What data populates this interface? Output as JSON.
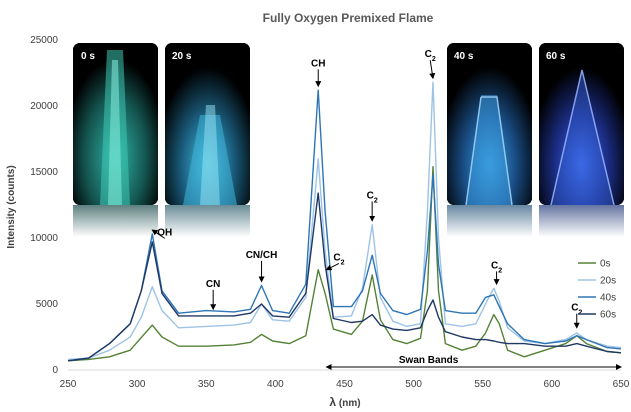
{
  "chart_data": {
    "type": "line",
    "title": "Fully Oxygen Premixed Flame",
    "xlabel_prefix": "λ",
    "xlabel_suffix": " (nm)",
    "ylabel": "Intensity (counts)",
    "xlim": [
      250,
      650
    ],
    "ylim": [
      0,
      25000
    ],
    "x_ticks": [
      250,
      300,
      350,
      400,
      450,
      500,
      550,
      600,
      650
    ],
    "y_ticks": [
      0,
      5000,
      10000,
      15000,
      20000,
      25000
    ],
    "grid": false,
    "legend_position": "right",
    "series": [
      {
        "name": "0s",
        "color": "#548235",
        "points": [
          [
            250,
            700
          ],
          [
            265,
            800
          ],
          [
            280,
            1000
          ],
          [
            295,
            1500
          ],
          [
            305,
            2700
          ],
          [
            311,
            3400
          ],
          [
            318,
            2500
          ],
          [
            330,
            1800
          ],
          [
            350,
            1800
          ],
          [
            370,
            1900
          ],
          [
            382,
            2100
          ],
          [
            390,
            2700
          ],
          [
            398,
            2200
          ],
          [
            410,
            2000
          ],
          [
            422,
            2600
          ],
          [
            431,
            7600
          ],
          [
            436,
            5800
          ],
          [
            442,
            3100
          ],
          [
            455,
            2700
          ],
          [
            463,
            3700
          ],
          [
            470,
            7200
          ],
          [
            476,
            3800
          ],
          [
            485,
            2300
          ],
          [
            495,
            2000
          ],
          [
            505,
            2400
          ],
          [
            510,
            6000
          ],
          [
            514,
            15400
          ],
          [
            518,
            6000
          ],
          [
            523,
            2000
          ],
          [
            535,
            1500
          ],
          [
            545,
            1800
          ],
          [
            552,
            2800
          ],
          [
            558,
            4200
          ],
          [
            562,
            3500
          ],
          [
            568,
            1500
          ],
          [
            580,
            1000
          ],
          [
            595,
            1500
          ],
          [
            610,
            2000
          ],
          [
            618,
            2600
          ],
          [
            625,
            2000
          ],
          [
            640,
            1400
          ],
          [
            650,
            1300
          ]
        ]
      },
      {
        "name": "20s",
        "color": "#9dc3e6",
        "points": [
          [
            250,
            800
          ],
          [
            265,
            900
          ],
          [
            280,
            1500
          ],
          [
            295,
            2500
          ],
          [
            303,
            4000
          ],
          [
            311,
            6300
          ],
          [
            318,
            4500
          ],
          [
            330,
            3200
          ],
          [
            350,
            3300
          ],
          [
            370,
            3400
          ],
          [
            382,
            3600
          ],
          [
            390,
            5000
          ],
          [
            398,
            3800
          ],
          [
            410,
            3700
          ],
          [
            422,
            5500
          ],
          [
            431,
            16000
          ],
          [
            436,
            9000
          ],
          [
            442,
            4000
          ],
          [
            455,
            4100
          ],
          [
            463,
            6200
          ],
          [
            470,
            11000
          ],
          [
            476,
            5500
          ],
          [
            485,
            3700
          ],
          [
            495,
            3300
          ],
          [
            505,
            3500
          ],
          [
            510,
            12000
          ],
          [
            514,
            21800
          ],
          [
            518,
            10000
          ],
          [
            523,
            3500
          ],
          [
            535,
            3300
          ],
          [
            545,
            3500
          ],
          [
            552,
            5000
          ],
          [
            558,
            6200
          ],
          [
            562,
            5200
          ],
          [
            568,
            3200
          ],
          [
            580,
            2200
          ],
          [
            595,
            2000
          ],
          [
            610,
            2300
          ],
          [
            618,
            2800
          ],
          [
            625,
            2300
          ],
          [
            640,
            1800
          ],
          [
            650,
            1700
          ]
        ]
      },
      {
        "name": "40s",
        "color": "#2e75b6",
        "points": [
          [
            250,
            700
          ],
          [
            265,
            900
          ],
          [
            280,
            2000
          ],
          [
            295,
            3500
          ],
          [
            303,
            6000
          ],
          [
            311,
            10300
          ],
          [
            318,
            6000
          ],
          [
            330,
            4300
          ],
          [
            350,
            4500
          ],
          [
            370,
            4400
          ],
          [
            382,
            4600
          ],
          [
            390,
            6400
          ],
          [
            398,
            4500
          ],
          [
            410,
            4300
          ],
          [
            422,
            6500
          ],
          [
            431,
            21200
          ],
          [
            436,
            12000
          ],
          [
            442,
            4800
          ],
          [
            455,
            4800
          ],
          [
            463,
            6000
          ],
          [
            470,
            8700
          ],
          [
            476,
            5800
          ],
          [
            485,
            4500
          ],
          [
            495,
            4200
          ],
          [
            505,
            4600
          ],
          [
            510,
            9000
          ],
          [
            514,
            14800
          ],
          [
            518,
            8000
          ],
          [
            523,
            4500
          ],
          [
            535,
            4300
          ],
          [
            545,
            4300
          ],
          [
            552,
            5500
          ],
          [
            558,
            5700
          ],
          [
            562,
            4800
          ],
          [
            568,
            3500
          ],
          [
            580,
            2300
          ],
          [
            595,
            2000
          ],
          [
            610,
            2200
          ],
          [
            618,
            2600
          ],
          [
            625,
            2300
          ],
          [
            640,
            1700
          ],
          [
            650,
            1600
          ]
        ]
      },
      {
        "name": "60s",
        "color": "#203864",
        "points": [
          [
            250,
            700
          ],
          [
            265,
            900
          ],
          [
            280,
            2000
          ],
          [
            295,
            3500
          ],
          [
            303,
            6000
          ],
          [
            311,
            9700
          ],
          [
            318,
            5800
          ],
          [
            330,
            4100
          ],
          [
            350,
            4100
          ],
          [
            370,
            4100
          ],
          [
            382,
            4300
          ],
          [
            390,
            5000
          ],
          [
            398,
            4100
          ],
          [
            410,
            4000
          ],
          [
            422,
            5800
          ],
          [
            431,
            13400
          ],
          [
            436,
            8000
          ],
          [
            442,
            3900
          ],
          [
            455,
            3600
          ],
          [
            463,
            3700
          ],
          [
            470,
            4200
          ],
          [
            476,
            3400
          ],
          [
            485,
            3100
          ],
          [
            495,
            3000
          ],
          [
            505,
            3200
          ],
          [
            510,
            4500
          ],
          [
            514,
            5300
          ],
          [
            518,
            4000
          ],
          [
            523,
            2900
          ],
          [
            535,
            2500
          ],
          [
            545,
            2300
          ],
          [
            552,
            2300
          ],
          [
            558,
            2200
          ],
          [
            562,
            2100
          ],
          [
            568,
            2000
          ],
          [
            580,
            2000
          ],
          [
            595,
            1800
          ],
          [
            610,
            1800
          ],
          [
            618,
            2000
          ],
          [
            625,
            1800
          ],
          [
            640,
            1400
          ],
          [
            650,
            1300
          ]
        ]
      }
    ],
    "annotations": [
      {
        "text": "OH",
        "x": 311,
        "y": 10300,
        "label_x": 320,
        "label_y": 10200
      },
      {
        "text": "CN",
        "x": 355,
        "y": 4300,
        "label_x": 355,
        "label_y": 6300
      },
      {
        "text": "CN/CH",
        "x": 390,
        "y": 6400,
        "label_x": 390,
        "label_y": 8500
      },
      {
        "text": "CH",
        "x": 431,
        "y": 21200,
        "label_x": 431,
        "label_y": 23000
      },
      {
        "text": "C",
        "sub": "2",
        "x": 437,
        "y": 7300,
        "label_x": 446,
        "label_y": 8300
      },
      {
        "text": "C",
        "sub": "2",
        "x": 470,
        "y": 11000,
        "label_x": 470,
        "label_y": 13000
      },
      {
        "text": "C",
        "sub": "2",
        "x": 514,
        "y": 21800,
        "label_x": 512,
        "label_y": 23700
      },
      {
        "text": "C",
        "sub": "2",
        "x": 560,
        "y": 6200,
        "label_x": 560,
        "label_y": 7700
      },
      {
        "text": "C",
        "sub": "2",
        "x": 618,
        "y": 2900,
        "label_x": 618,
        "label_y": 4500
      }
    ],
    "swan_bands": {
      "text": "Swan Bands",
      "x_start": 437,
      "x_end": 650
    }
  },
  "insets": [
    {
      "label": "0 s"
    },
    {
      "label": "20 s"
    },
    {
      "label": "40 s"
    },
    {
      "label": "60 s"
    }
  ]
}
